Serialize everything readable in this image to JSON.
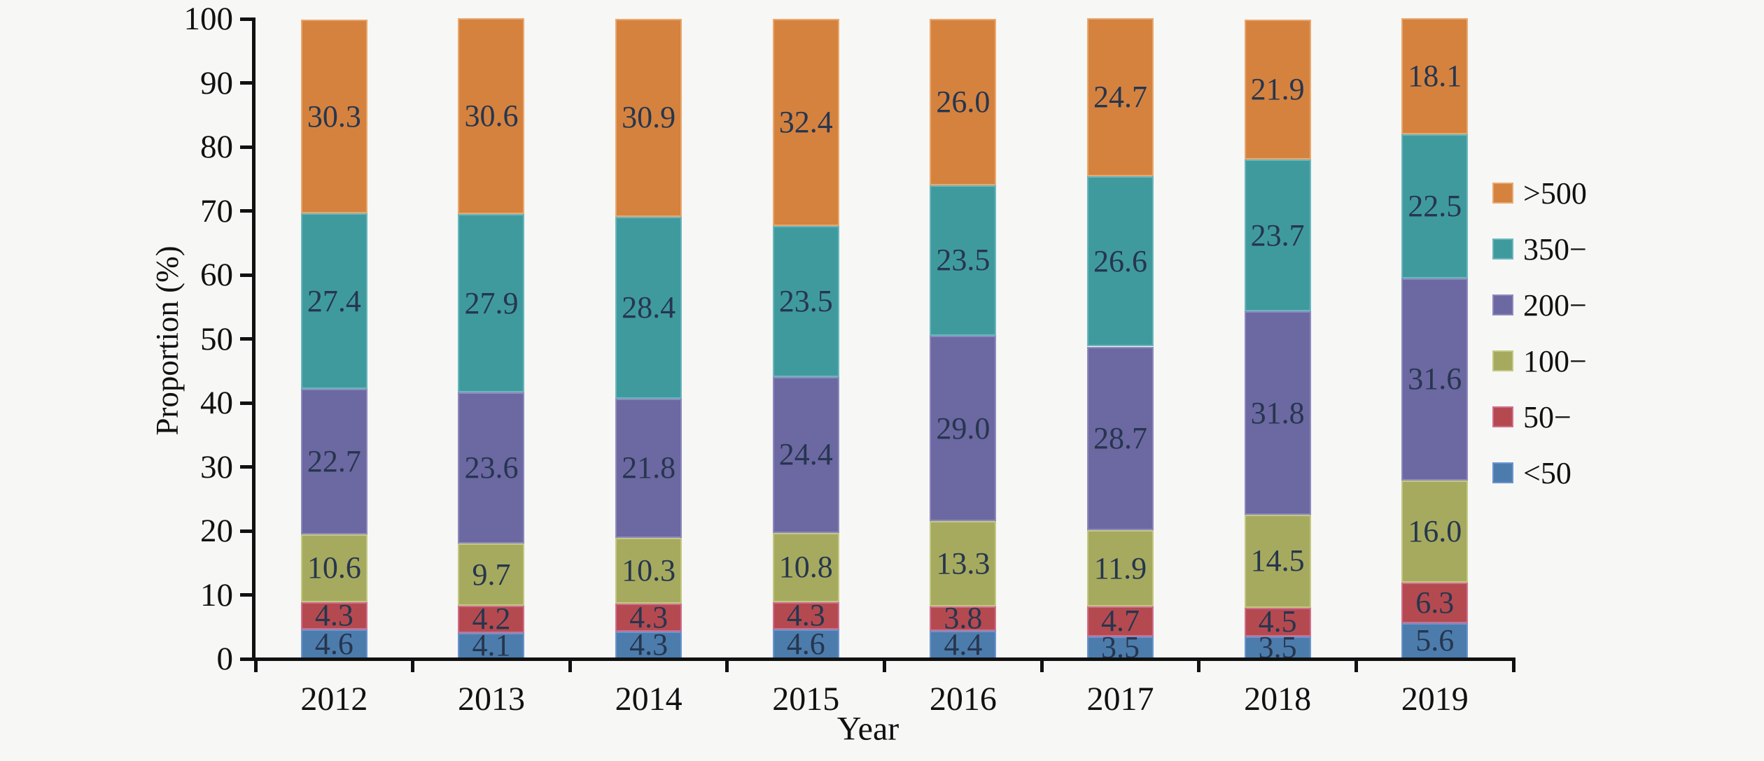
{
  "background": "#f7f7f5",
  "axis": {
    "ylabel": "Proportion (%)",
    "xlabel": "Year",
    "yticks": [
      0,
      10,
      20,
      30,
      40,
      50,
      60,
      70,
      80,
      90,
      100
    ],
    "color": "#111111"
  },
  "chart_data": {
    "type": "bar",
    "stacked": true,
    "title": "",
    "xlabel": "Year",
    "ylabel": "Proportion (%)",
    "ylim": [
      0,
      100
    ],
    "grid": false,
    "legend_position": "right",
    "categories": [
      "2012",
      "2013",
      "2014",
      "2015",
      "2016",
      "2017",
      "2018",
      "2019"
    ],
    "series": [
      {
        "name": "<50",
        "color": "#4c7cac",
        "edge": "#6a94cf",
        "values": [
          4.6,
          4.1,
          4.3,
          4.6,
          4.4,
          3.5,
          3.5,
          5.6
        ]
      },
      {
        "name": "50−",
        "color": "#b44a50",
        "edge": "#cf6f8e",
        "values": [
          4.3,
          4.2,
          4.3,
          4.3,
          3.8,
          4.7,
          4.5,
          6.3
        ]
      },
      {
        "name": "100−",
        "color": "#a6aa5e",
        "edge": "#c3c883",
        "values": [
          10.6,
          9.7,
          10.3,
          10.8,
          13.3,
          11.9,
          14.5,
          16.0
        ]
      },
      {
        "name": "200−",
        "color": "#6c68a2",
        "edge": "#8d89bd",
        "values": [
          22.7,
          23.6,
          21.8,
          24.4,
          29.0,
          28.7,
          31.8,
          31.6
        ]
      },
      {
        "name": "350−",
        "color": "#3f9a9e",
        "edge": "#6ab6bc",
        "values": [
          27.4,
          27.9,
          28.4,
          23.5,
          23.5,
          26.6,
          23.7,
          22.5
        ]
      },
      {
        "name": ">500",
        "color": "#d5823f",
        "edge": "#e8a86e",
        "values": [
          30.3,
          30.6,
          30.9,
          32.4,
          26.0,
          24.7,
          21.9,
          18.1
        ]
      }
    ],
    "legend_order": [
      ">500",
      "350−",
      "200−",
      "100−",
      "50−",
      "<50"
    ],
    "value_label_color": "#26364e"
  }
}
